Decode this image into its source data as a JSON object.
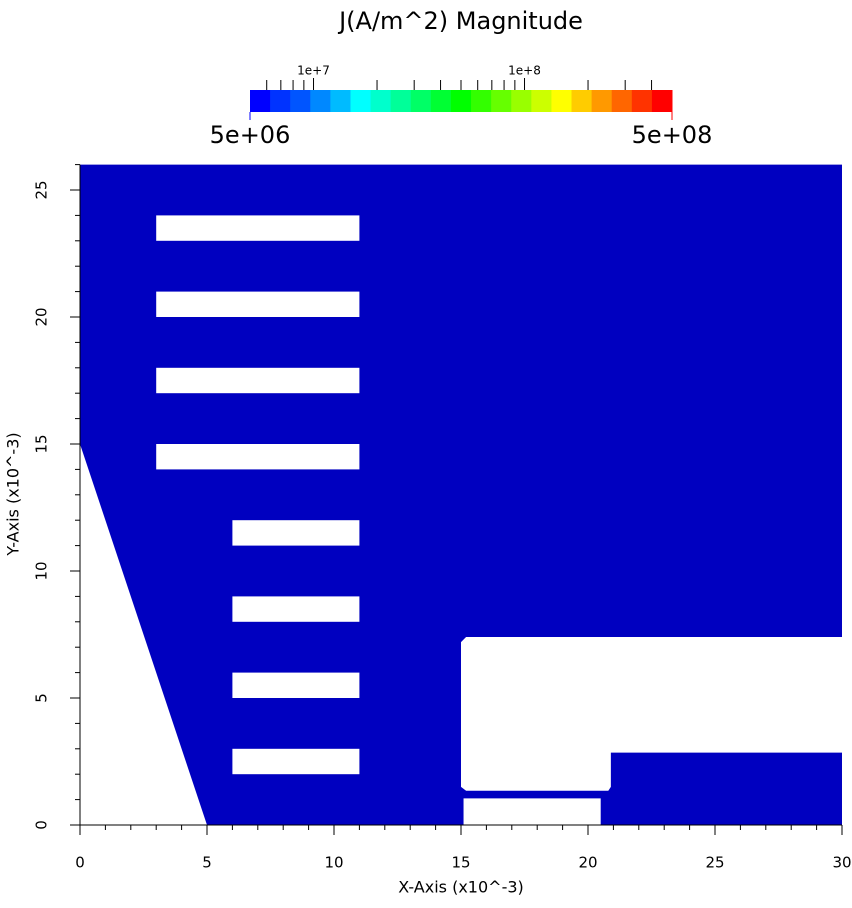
{
  "chart_data": {
    "type": "field",
    "title": "J(A/m^2) Magnitude",
    "x_label": "X-Axis (x10^-3)",
    "y_label": "Y-Axis (x10^-3)",
    "xlim": [
      0,
      30
    ],
    "ylim": [
      0,
      26
    ],
    "xticks": [
      0,
      5,
      10,
      15,
      20,
      25,
      30
    ],
    "yticks": [
      0,
      5,
      10,
      15,
      20,
      25
    ],
    "minor_tick_step": 1,
    "color": "#0000c0",
    "outline": {
      "x": [
        0,
        0,
        30,
        30,
        15.2,
        15,
        15,
        15.2,
        20.8,
        20.9,
        20.9,
        30,
        30,
        20.5,
        20.5,
        15.1,
        15.1,
        5
      ],
      "y": [
        15,
        26,
        26,
        7.4,
        7.4,
        7.2,
        1.5,
        1.35,
        1.35,
        1.5,
        2.85,
        2.85,
        0,
        0,
        1.05,
        1.05,
        0,
        0
      ]
    },
    "holes": [
      {
        "x": [
          3,
          11
        ],
        "y": [
          23,
          24
        ]
      },
      {
        "x": [
          3,
          11
        ],
        "y": [
          20,
          21
        ]
      },
      {
        "x": [
          3,
          11
        ],
        "y": [
          17,
          18
        ]
      },
      {
        "x": [
          3,
          11
        ],
        "y": [
          14,
          15
        ]
      },
      {
        "x": [
          6,
          11
        ],
        "y": [
          11,
          12
        ]
      },
      {
        "x": [
          6,
          11
        ],
        "y": [
          8,
          9
        ]
      },
      {
        "x": [
          6,
          11
        ],
        "y": [
          5,
          6
        ]
      },
      {
        "x": [
          6,
          11
        ],
        "y": [
          2,
          3
        ]
      }
    ],
    "colorbar": {
      "log": true,
      "limits": [
        {
          "value": 5000000,
          "label": "5e+06"
        },
        {
          "value": 500000000,
          "label": "5e+08"
        }
      ],
      "ticks": [
        {
          "value": 10000000,
          "label": "1e+7"
        },
        {
          "value": 100000000,
          "label": "1e+8"
        }
      ],
      "minor_ticks": [
        6000000,
        7000000,
        8000000,
        9000000,
        20000000,
        30000000,
        40000000,
        50000000,
        60000000,
        70000000,
        80000000,
        90000000,
        200000000,
        300000000,
        400000000
      ],
      "colors": [
        "#0000ff",
        "#0033ff",
        "#0055ff",
        "#0088ff",
        "#00bbff",
        "#00ffff",
        "#00ffcc",
        "#00ff99",
        "#00ff66",
        "#00ff33",
        "#00ff00",
        "#33ff00",
        "#66ff00",
        "#99ff00",
        "#ccff00",
        "#ffff00",
        "#ffcc00",
        "#ff9900",
        "#ff6600",
        "#ff3300",
        "#ff0000"
      ]
    }
  }
}
